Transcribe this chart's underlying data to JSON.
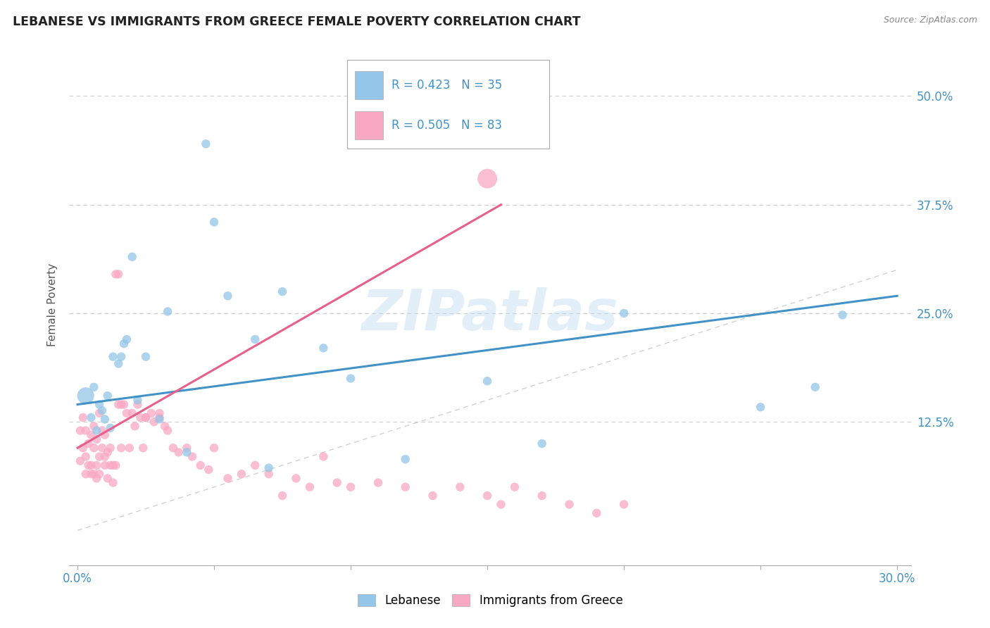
{
  "title": "LEBANESE VS IMMIGRANTS FROM GREECE FEMALE POVERTY CORRELATION CHART",
  "source": "Source: ZipAtlas.com",
  "ylabel": "Female Poverty",
  "ytick_vals": [
    0.125,
    0.25,
    0.375,
    0.5
  ],
  "ytick_labels": [
    "12.5%",
    "25.0%",
    "37.5%",
    "50.0%"
  ],
  "xlim": [
    -0.003,
    0.305
  ],
  "ylim": [
    -0.04,
    0.56
  ],
  "watermark": "ZIPatlas",
  "legend_R1": "R = 0.423",
  "legend_N1": "N = 35",
  "legend_R2": "R = 0.505",
  "legend_N2": "N = 83",
  "color_blue": "#93c6e8",
  "color_pink": "#f9a8c4",
  "color_line_blue": "#4292c6",
  "color_line_pink": "#e8608a",
  "color_diag": "#cccccc",
  "lebanese_x": [
    0.003,
    0.005,
    0.006,
    0.007,
    0.008,
    0.009,
    0.01,
    0.011,
    0.012,
    0.013,
    0.015,
    0.016,
    0.017,
    0.018,
    0.02,
    0.022,
    0.025,
    0.03,
    0.033,
    0.04,
    0.047,
    0.05,
    0.055,
    0.065,
    0.07,
    0.075,
    0.09,
    0.1,
    0.12,
    0.15,
    0.17,
    0.2,
    0.25,
    0.27,
    0.28
  ],
  "lebanese_y": [
    0.155,
    0.13,
    0.165,
    0.115,
    0.145,
    0.138,
    0.128,
    0.155,
    0.118,
    0.2,
    0.192,
    0.2,
    0.215,
    0.22,
    0.315,
    0.15,
    0.2,
    0.128,
    0.252,
    0.09,
    0.445,
    0.355,
    0.27,
    0.22,
    0.072,
    0.275,
    0.21,
    0.175,
    0.082,
    0.172,
    0.1,
    0.25,
    0.142,
    0.165,
    0.248
  ],
  "lebanese_sizes": [
    300,
    80,
    80,
    80,
    80,
    80,
    80,
    80,
    80,
    80,
    80,
    80,
    80,
    80,
    80,
    80,
    80,
    80,
    80,
    80,
    80,
    80,
    80,
    80,
    80,
    80,
    80,
    80,
    80,
    80,
    80,
    80,
    80,
    80,
    80
  ],
  "greece_x": [
    0.001,
    0.001,
    0.002,
    0.002,
    0.003,
    0.003,
    0.003,
    0.004,
    0.004,
    0.005,
    0.005,
    0.005,
    0.006,
    0.006,
    0.006,
    0.007,
    0.007,
    0.007,
    0.008,
    0.008,
    0.008,
    0.009,
    0.009,
    0.01,
    0.01,
    0.01,
    0.011,
    0.011,
    0.012,
    0.012,
    0.013,
    0.013,
    0.014,
    0.014,
    0.015,
    0.015,
    0.016,
    0.016,
    0.017,
    0.018,
    0.019,
    0.02,
    0.021,
    0.022,
    0.023,
    0.024,
    0.025,
    0.027,
    0.028,
    0.03,
    0.032,
    0.033,
    0.035,
    0.037,
    0.04,
    0.042,
    0.045,
    0.048,
    0.05,
    0.055,
    0.06,
    0.065,
    0.07,
    0.075,
    0.08,
    0.085,
    0.09,
    0.095,
    0.1,
    0.11,
    0.12,
    0.13,
    0.14,
    0.15,
    0.155,
    0.16,
    0.17,
    0.18,
    0.19,
    0.2,
    0.15,
    0.03,
    0.025
  ],
  "greece_y": [
    0.115,
    0.08,
    0.095,
    0.13,
    0.085,
    0.065,
    0.115,
    0.1,
    0.075,
    0.11,
    0.075,
    0.065,
    0.12,
    0.095,
    0.065,
    0.105,
    0.075,
    0.06,
    0.135,
    0.085,
    0.065,
    0.095,
    0.115,
    0.085,
    0.11,
    0.075,
    0.09,
    0.06,
    0.095,
    0.075,
    0.075,
    0.055,
    0.295,
    0.075,
    0.295,
    0.145,
    0.145,
    0.095,
    0.145,
    0.135,
    0.095,
    0.135,
    0.12,
    0.145,
    0.13,
    0.095,
    0.13,
    0.135,
    0.125,
    0.135,
    0.12,
    0.115,
    0.095,
    0.09,
    0.095,
    0.085,
    0.075,
    0.07,
    0.095,
    0.06,
    0.065,
    0.075,
    0.065,
    0.04,
    0.06,
    0.05,
    0.085,
    0.055,
    0.05,
    0.055,
    0.05,
    0.04,
    0.05,
    0.04,
    0.03,
    0.05,
    0.04,
    0.03,
    0.02,
    0.03,
    0.405,
    0.13,
    0.13
  ],
  "greece_sizes": [
    80,
    80,
    80,
    80,
    80,
    80,
    80,
    80,
    80,
    80,
    80,
    80,
    80,
    80,
    80,
    80,
    80,
    80,
    80,
    80,
    80,
    80,
    80,
    80,
    80,
    80,
    80,
    80,
    80,
    80,
    80,
    80,
    80,
    80,
    80,
    80,
    80,
    80,
    80,
    80,
    80,
    80,
    80,
    80,
    80,
    80,
    80,
    80,
    80,
    80,
    80,
    80,
    80,
    80,
    80,
    80,
    80,
    80,
    80,
    80,
    80,
    80,
    80,
    80,
    80,
    80,
    80,
    80,
    80,
    80,
    80,
    80,
    80,
    80,
    80,
    80,
    80,
    80,
    80,
    80,
    400,
    80,
    80
  ],
  "leb_line_x": [
    0.0,
    0.3
  ],
  "leb_line_y": [
    0.145,
    0.27
  ],
  "gre_line_x": [
    0.0,
    0.155
  ],
  "gre_line_y": [
    0.095,
    0.375
  ],
  "diag_line_x": [
    0.0,
    0.3
  ],
  "diag_line_y": [
    0.0,
    0.3
  ]
}
